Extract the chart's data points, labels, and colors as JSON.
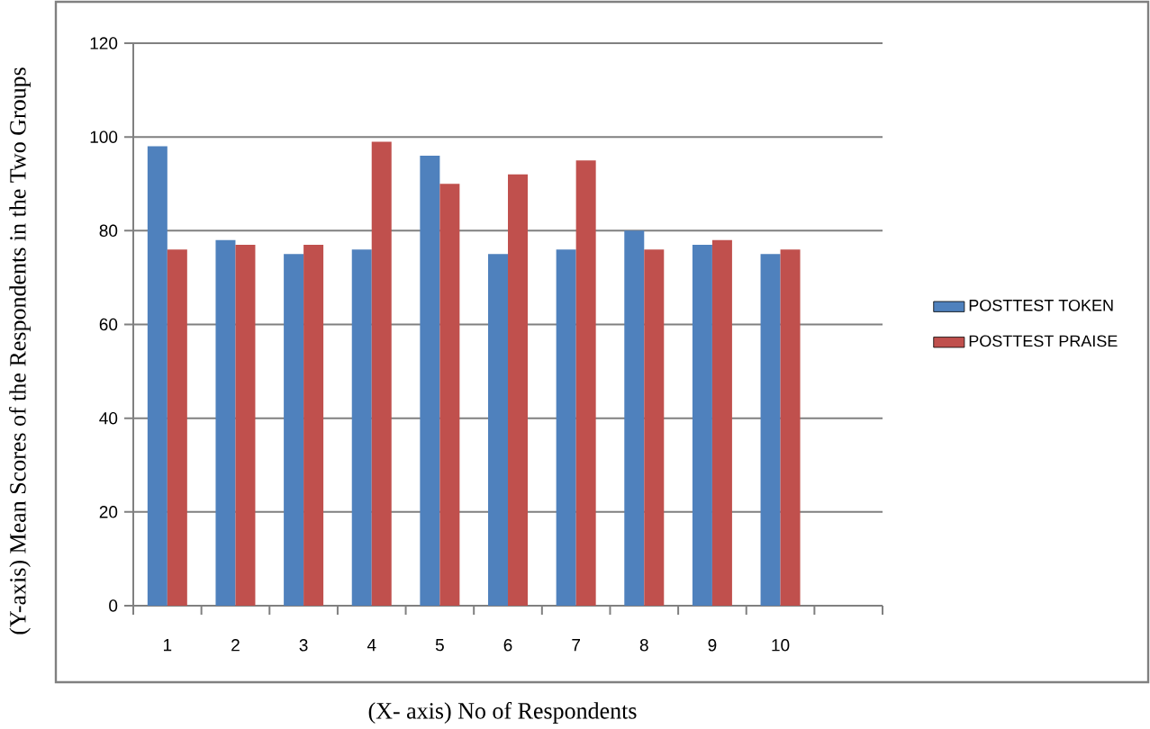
{
  "chart_data": {
    "type": "bar",
    "xlabel": "(X- axis) No of Respondents",
    "ylabel": "(Y-axis) Mean Scores of the Respondents in the Two Groups",
    "categories": [
      "1",
      "2",
      "3",
      "4",
      "5",
      "6",
      "7",
      "8",
      "9",
      "10",
      null
    ],
    "series": [
      {
        "name": "POSTTEST TOKEN",
        "color": "#4f81bd",
        "values": [
          98,
          78,
          75,
          76,
          96,
          75,
          76,
          80,
          77,
          75,
          null
        ]
      },
      {
        "name": "POSTTEST PRAISE",
        "color": "#c0504d",
        "values": [
          76,
          77,
          77,
          99,
          90,
          92,
          95,
          76,
          78,
          76,
          null
        ]
      }
    ],
    "ylim": [
      0,
      120
    ],
    "yticks": [
      0,
      20,
      40,
      60,
      80,
      100,
      120
    ],
    "grid": "y",
    "legend": "right"
  }
}
